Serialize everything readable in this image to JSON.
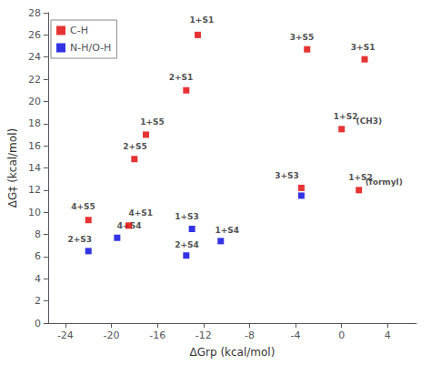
{
  "chart_data": {
    "type": "scatter",
    "marker": "square",
    "xlabel": "ΔGrp (kcal/mol)",
    "ylabel": "ΔG‡ (kcal/mol)",
    "series": [
      {
        "name": "C-H",
        "color": "#e00000",
        "x": [
          -12.5,
          -13.5,
          -17.0,
          -18.0,
          -22.0,
          -18.5,
          -3.0,
          2.0,
          0.0,
          -3.5,
          1.5
        ],
        "values": [
          26.0,
          21.0,
          17.0,
          14.8,
          9.3,
          8.8,
          24.7,
          23.8,
          17.5,
          12.2,
          12.0
        ]
      },
      {
        "name": "N-H/O-H",
        "color": "#0000e0",
        "x": [
          -22.0,
          -19.5,
          -13.0,
          -13.5,
          -10.5,
          -3.5
        ],
        "values": [
          6.5,
          7.7,
          8.5,
          6.1,
          7.4,
          11.5
        ]
      }
    ],
    "annotations": [
      {
        "text": "1+S1",
        "x": -13.2,
        "y": 27.0
      },
      {
        "text": "2+S1",
        "x": -15.0,
        "y": 21.8
      },
      {
        "text": "1+S5",
        "x": -17.5,
        "y": 17.8
      },
      {
        "text": "2+S5",
        "x": -19.0,
        "y": 15.6
      },
      {
        "text": "4+S5",
        "x": -23.5,
        "y": 10.1
      },
      {
        "text": "4+S1",
        "x": -18.5,
        "y": 9.6
      },
      {
        "text": "3+S5",
        "x": -4.5,
        "y": 25.4
      },
      {
        "text": "3+S1",
        "x": 0.8,
        "y": 24.5
      },
      {
        "text": "3+S3",
        "x": -5.8,
        "y": 12.9
      },
      {
        "text": "1+S2",
        "x": -0.7,
        "y": 18.3
      },
      {
        "text": "(CH3)",
        "x": 1.25,
        "y": 17.85
      },
      {
        "text": "1+S2",
        "x": 0.6,
        "y": 12.8
      },
      {
        "text": "(formyl)",
        "x": 2.05,
        "y": 12.35
      },
      {
        "text": "2+S3",
        "x": -23.8,
        "y": 7.2
      },
      {
        "text": "4+S4",
        "x": -19.5,
        "y": 8.4
      },
      {
        "text": "1+S3",
        "x": -14.5,
        "y": 9.2
      },
      {
        "text": "2+S4",
        "x": -14.5,
        "y": 6.7
      },
      {
        "text": "1+S4",
        "x": -11.0,
        "y": 8.0
      }
    ],
    "xlim": [
      -25.5,
      6.5
    ],
    "ylim": [
      0,
      28
    ],
    "xticks": [
      -24,
      -20,
      -16,
      -12,
      -8,
      -4,
      0,
      4
    ],
    "yticks": [
      0,
      2,
      4,
      6,
      8,
      10,
      12,
      14,
      16,
      18,
      20,
      22,
      24,
      26,
      28
    ],
    "grid": false,
    "legend": "upper left"
  }
}
